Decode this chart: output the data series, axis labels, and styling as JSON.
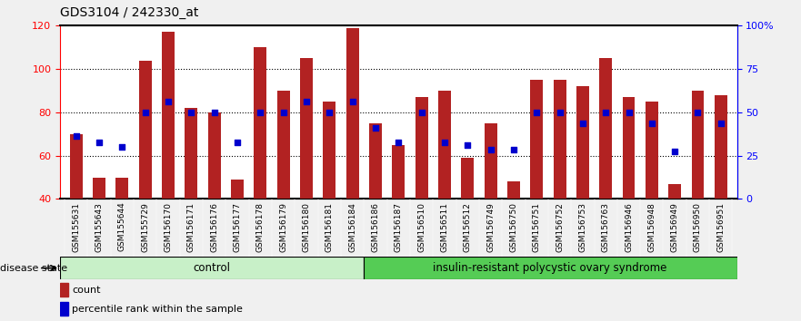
{
  "title": "GDS3104 / 242330_at",
  "samples": [
    "GSM155631",
    "GSM155643",
    "GSM155644",
    "GSM155729",
    "GSM156170",
    "GSM156171",
    "GSM156176",
    "GSM156177",
    "GSM156178",
    "GSM156179",
    "GSM156180",
    "GSM156181",
    "GSM156184",
    "GSM156186",
    "GSM156187",
    "GSM156510",
    "GSM156511",
    "GSM156512",
    "GSM156749",
    "GSM156750",
    "GSM156751",
    "GSM156752",
    "GSM156753",
    "GSM156763",
    "GSM156946",
    "GSM156948",
    "GSM156949",
    "GSM156950",
    "GSM156951"
  ],
  "counts": [
    70,
    50,
    50,
    104,
    117,
    82,
    80,
    49,
    110,
    90,
    105,
    85,
    119,
    75,
    65,
    87,
    90,
    59,
    75,
    48,
    95,
    95,
    92,
    105,
    87,
    85,
    47,
    90,
    88
  ],
  "percentiles": [
    43,
    41,
    40,
    50,
    53,
    50,
    50,
    41,
    50,
    50,
    53,
    50,
    53,
    46,
    41,
    50,
    41,
    41,
    39,
    39,
    50,
    50,
    47,
    50,
    50,
    47,
    39,
    50,
    47
  ],
  "group1_count": 13,
  "group2_count": 16,
  "group1_label": "control",
  "group2_label": "insulin-resistant polycystic ovary syndrome",
  "bar_color": "#B22222",
  "dot_color": "#0000CD",
  "ylim_left": [
    40,
    120
  ],
  "yticks_left": [
    40,
    60,
    80,
    100,
    120
  ],
  "ylim_right": [
    0,
    100
  ],
  "yticks_right": [
    0,
    25,
    50,
    75,
    100
  ],
  "ytick_labels_right": [
    "0",
    "25",
    "50",
    "75",
    "100%"
  ],
  "grid_yticks": [
    60,
    80,
    100
  ],
  "bg_color": "#f0f0f0",
  "plot_bg": "white",
  "group1_bg": "#c8f0c8",
  "group2_bg": "#55cc55",
  "bar_width": 0.55
}
